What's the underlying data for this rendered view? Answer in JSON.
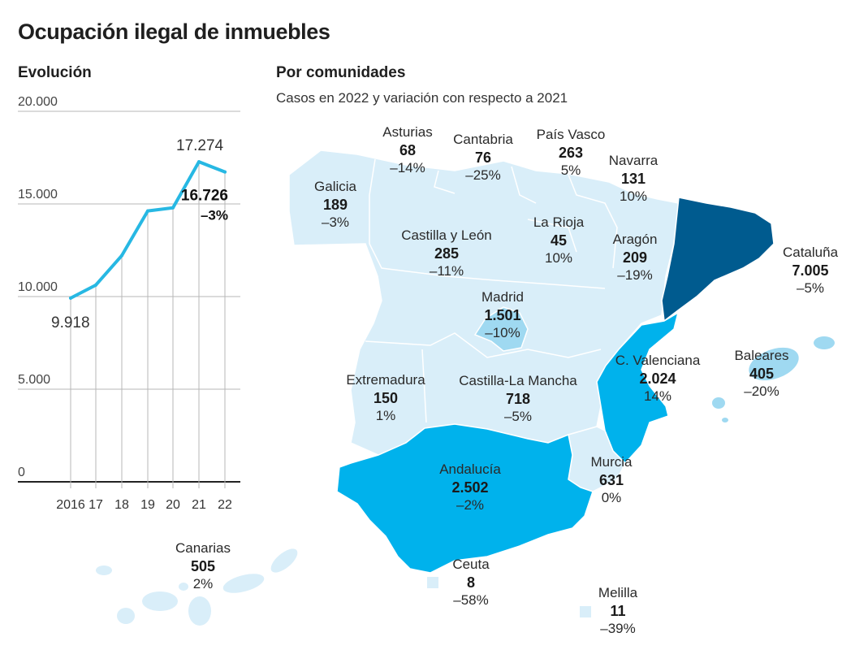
{
  "title": "Ocupación ilegal de inmuebles",
  "line_heading": "Evolución",
  "map_heading": "Por comunidades",
  "map_subtitle": "Casos en 2022 y variación con respecto a 2021",
  "colors": {
    "line": "#27b8e3",
    "light_region": "#d9eef9",
    "medium_region": "#00b2ec",
    "dark_region": "#005b8f",
    "border": "#ffffff",
    "grid": "#b7b7b7"
  },
  "chart_data": [
    {
      "type": "line",
      "title": "Evolución",
      "x": [
        "2016",
        "17",
        "18",
        "19",
        "20",
        "21",
        "22"
      ],
      "values": [
        9918,
        10620,
        12214,
        14621,
        14792,
        17274,
        16726
      ],
      "ylim": [
        0,
        20000
      ],
      "yticks": [
        "0",
        "5.000",
        "10.000",
        "15.000",
        "20.000"
      ],
      "annotations": [
        {
          "label": "9.918",
          "x": "2016"
        },
        {
          "label": "17.274",
          "x": "21"
        },
        {
          "label": "16.726",
          "sub": "–3%",
          "x": "22"
        }
      ],
      "grid": true
    },
    {
      "type": "table",
      "title": "Por comunidades",
      "subtitle": "Casos en 2022 y variación con respecto a 2021",
      "regions": [
        {
          "name": "Asturias",
          "value": "68",
          "change": "–14%"
        },
        {
          "name": "Cantabria",
          "value": "76",
          "change": "–25%"
        },
        {
          "name": "País Vasco",
          "value": "263",
          "change": "5%"
        },
        {
          "name": "Navarra",
          "value": "131",
          "change": "10%"
        },
        {
          "name": "Galicia",
          "value": "189",
          "change": "–3%"
        },
        {
          "name": "Castilla y León",
          "value": "285",
          "change": "–11%"
        },
        {
          "name": "La Rioja",
          "value": "45",
          "change": "10%"
        },
        {
          "name": "Aragón",
          "value": "209",
          "change": "–19%"
        },
        {
          "name": "Cataluña",
          "value": "7.005",
          "change": "–5%"
        },
        {
          "name": "Madrid",
          "value": "1.501",
          "change": "–10%"
        },
        {
          "name": "C. Valenciana",
          "value": "2.024",
          "change": "14%"
        },
        {
          "name": "Baleares",
          "value": "405",
          "change": "–20%"
        },
        {
          "name": "Extremadura",
          "value": "150",
          "change": "1%"
        },
        {
          "name": "Castilla-La Mancha",
          "value": "718",
          "change": "–5%"
        },
        {
          "name": "Andalucía",
          "value": "2.502",
          "change": "–2%"
        },
        {
          "name": "Murcia",
          "value": "631",
          "change": "0%"
        },
        {
          "name": "Ceuta",
          "value": "8",
          "change": "–58%"
        },
        {
          "name": "Melilla",
          "value": "11",
          "change": "–39%"
        },
        {
          "name": "Canarias",
          "value": "505",
          "change": "2%"
        }
      ]
    }
  ]
}
